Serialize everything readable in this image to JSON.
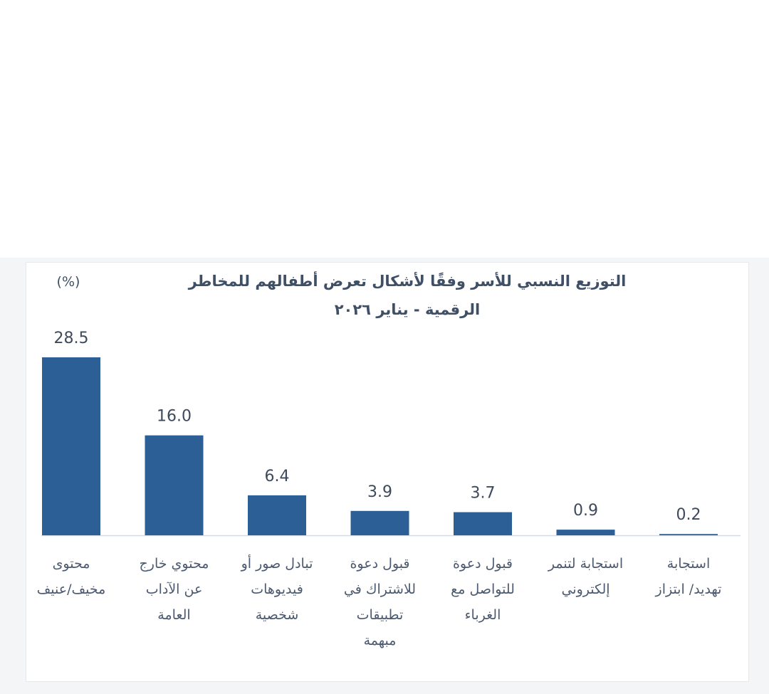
{
  "chart_data": {
    "type": "bar",
    "title": "التوزيع النسبي للأسر وفقًا لأشكال تعرض أطفالهم للمخاطر",
    "subtitle": "الرقمية - يناير ٢٠٢٦",
    "unit_label": "(%)",
    "xlabel": "",
    "ylabel": "",
    "ylim": [
      0,
      30
    ],
    "grid": false,
    "bar_color": "#2b5f95",
    "categories": [
      [
        "محتوى",
        "مخيف/عنيف"
      ],
      [
        "محتوي خارج",
        "عن الآداب",
        "العامة"
      ],
      [
        "تبادل صور أو",
        "فيديوهات",
        "شخصية"
      ],
      [
        "قبول دعوة",
        "للاشتراك في",
        "تطبيقات",
        "مبهمة"
      ],
      [
        "قبول دعوة",
        "للتواصل مع",
        "الغرباء"
      ],
      [
        "استجابة لتنمر",
        "إلكتروني"
      ],
      [
        "استجابة",
        "تهديد/ ابتزاز"
      ]
    ],
    "values": [
      28.5,
      16.0,
      6.4,
      3.9,
      3.7,
      0.9,
      0.2
    ],
    "value_labels": [
      "28.5",
      "16.0",
      "6.4",
      "3.9",
      "3.7",
      "0.9",
      "0.2"
    ]
  }
}
